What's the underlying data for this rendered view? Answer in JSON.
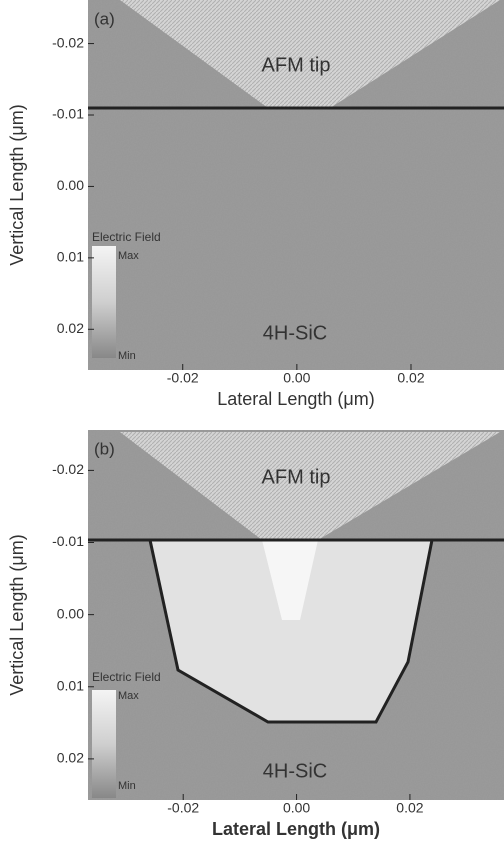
{
  "chart_data": [
    {
      "type": "field-map",
      "panel_label": "(a)",
      "x_label": "Lateral Length (μm)",
      "y_label": "Vertical Length (μm)",
      "annotations": [
        "AFM tip",
        "4H-SiC"
      ],
      "colorbar": {
        "title": "Electric Field",
        "max_label": "Max",
        "min_label": "Min"
      },
      "xlim": [
        -0.0366,
        0.0363
      ],
      "ylim": [
        -0.0261,
        0.0257
      ],
      "y_inverted": true,
      "xticks": [
        -0.02,
        {
          "value": 0,
          "label": "0.00"
        },
        0.02
      ],
      "yticks": [
        -0.02,
        -0.01,
        {
          "value": 0,
          "label": "0.00"
        },
        0.01,
        0.02
      ]
    },
    {
      "type": "field-map",
      "panel_label": "(b)",
      "x_label": "Lateral Length (μm)",
      "y_label": "Vertical Length (μm)",
      "annotations": [
        "AFM tip",
        "4H-SiC"
      ],
      "colorbar": {
        "title": "Electric Field",
        "max_label": "Max",
        "min_label": "Min"
      },
      "xlim": [
        -0.0368,
        0.0366
      ],
      "ylim": [
        -0.0256,
        0.0257
      ],
      "y_inverted": true,
      "xticks": [
        -0.02,
        {
          "value": 0,
          "label": "0.00"
        },
        0.02
      ],
      "yticks": [
        -0.02,
        -0.01,
        {
          "value": 0,
          "label": "0.00"
        },
        0.01,
        0.02
      ]
    }
  ]
}
